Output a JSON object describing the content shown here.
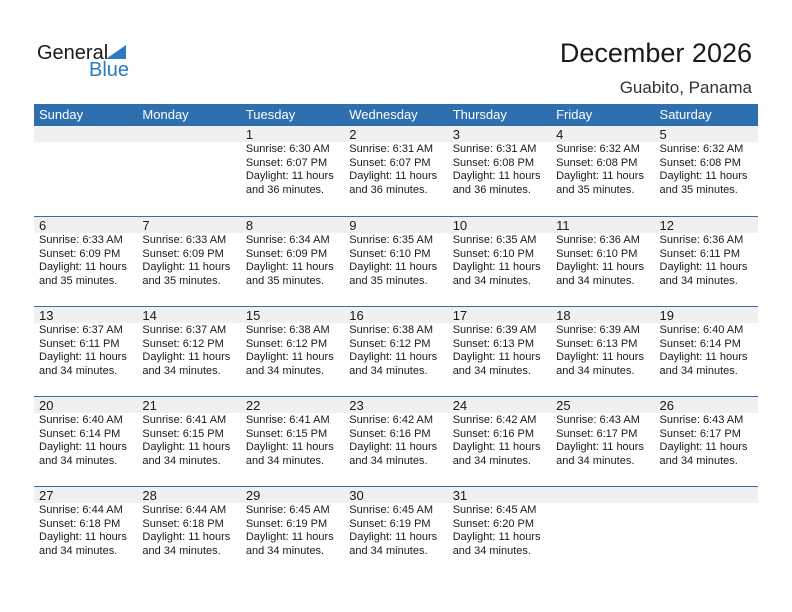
{
  "logo": {
    "general": "General",
    "blue": "Blue"
  },
  "title": "December 2026",
  "location": "Guabito, Panama",
  "colors": {
    "header": "#2e6fb0",
    "band": "#f0f0f0",
    "logo_blue": "#2a7bbf"
  },
  "weekdays": [
    "Sunday",
    "Monday",
    "Tuesday",
    "Wednesday",
    "Thursday",
    "Friday",
    "Saturday"
  ],
  "weeks": [
    [
      null,
      null,
      {
        "day": "1",
        "sunrise": "Sunrise: 6:30 AM",
        "sunset": "Sunset: 6:07 PM",
        "daylight1": "Daylight: 11 hours",
        "daylight2": "and 36 minutes."
      },
      {
        "day": "2",
        "sunrise": "Sunrise: 6:31 AM",
        "sunset": "Sunset: 6:07 PM",
        "daylight1": "Daylight: 11 hours",
        "daylight2": "and 36 minutes."
      },
      {
        "day": "3",
        "sunrise": "Sunrise: 6:31 AM",
        "sunset": "Sunset: 6:08 PM",
        "daylight1": "Daylight: 11 hours",
        "daylight2": "and 36 minutes."
      },
      {
        "day": "4",
        "sunrise": "Sunrise: 6:32 AM",
        "sunset": "Sunset: 6:08 PM",
        "daylight1": "Daylight: 11 hours",
        "daylight2": "and 35 minutes."
      },
      {
        "day": "5",
        "sunrise": "Sunrise: 6:32 AM",
        "sunset": "Sunset: 6:08 PM",
        "daylight1": "Daylight: 11 hours",
        "daylight2": "and 35 minutes."
      }
    ],
    [
      {
        "day": "6",
        "sunrise": "Sunrise: 6:33 AM",
        "sunset": "Sunset: 6:09 PM",
        "daylight1": "Daylight: 11 hours",
        "daylight2": "and 35 minutes."
      },
      {
        "day": "7",
        "sunrise": "Sunrise: 6:33 AM",
        "sunset": "Sunset: 6:09 PM",
        "daylight1": "Daylight: 11 hours",
        "daylight2": "and 35 minutes."
      },
      {
        "day": "8",
        "sunrise": "Sunrise: 6:34 AM",
        "sunset": "Sunset: 6:09 PM",
        "daylight1": "Daylight: 11 hours",
        "daylight2": "and 35 minutes."
      },
      {
        "day": "9",
        "sunrise": "Sunrise: 6:35 AM",
        "sunset": "Sunset: 6:10 PM",
        "daylight1": "Daylight: 11 hours",
        "daylight2": "and 35 minutes."
      },
      {
        "day": "10",
        "sunrise": "Sunrise: 6:35 AM",
        "sunset": "Sunset: 6:10 PM",
        "daylight1": "Daylight: 11 hours",
        "daylight2": "and 34 minutes."
      },
      {
        "day": "11",
        "sunrise": "Sunrise: 6:36 AM",
        "sunset": "Sunset: 6:10 PM",
        "daylight1": "Daylight: 11 hours",
        "daylight2": "and 34 minutes."
      },
      {
        "day": "12",
        "sunrise": "Sunrise: 6:36 AM",
        "sunset": "Sunset: 6:11 PM",
        "daylight1": "Daylight: 11 hours",
        "daylight2": "and 34 minutes."
      }
    ],
    [
      {
        "day": "13",
        "sunrise": "Sunrise: 6:37 AM",
        "sunset": "Sunset: 6:11 PM",
        "daylight1": "Daylight: 11 hours",
        "daylight2": "and 34 minutes."
      },
      {
        "day": "14",
        "sunrise": "Sunrise: 6:37 AM",
        "sunset": "Sunset: 6:12 PM",
        "daylight1": "Daylight: 11 hours",
        "daylight2": "and 34 minutes."
      },
      {
        "day": "15",
        "sunrise": "Sunrise: 6:38 AM",
        "sunset": "Sunset: 6:12 PM",
        "daylight1": "Daylight: 11 hours",
        "daylight2": "and 34 minutes."
      },
      {
        "day": "16",
        "sunrise": "Sunrise: 6:38 AM",
        "sunset": "Sunset: 6:12 PM",
        "daylight1": "Daylight: 11 hours",
        "daylight2": "and 34 minutes."
      },
      {
        "day": "17",
        "sunrise": "Sunrise: 6:39 AM",
        "sunset": "Sunset: 6:13 PM",
        "daylight1": "Daylight: 11 hours",
        "daylight2": "and 34 minutes."
      },
      {
        "day": "18",
        "sunrise": "Sunrise: 6:39 AM",
        "sunset": "Sunset: 6:13 PM",
        "daylight1": "Daylight: 11 hours",
        "daylight2": "and 34 minutes."
      },
      {
        "day": "19",
        "sunrise": "Sunrise: 6:40 AM",
        "sunset": "Sunset: 6:14 PM",
        "daylight1": "Daylight: 11 hours",
        "daylight2": "and 34 minutes."
      }
    ],
    [
      {
        "day": "20",
        "sunrise": "Sunrise: 6:40 AM",
        "sunset": "Sunset: 6:14 PM",
        "daylight1": "Daylight: 11 hours",
        "daylight2": "and 34 minutes."
      },
      {
        "day": "21",
        "sunrise": "Sunrise: 6:41 AM",
        "sunset": "Sunset: 6:15 PM",
        "daylight1": "Daylight: 11 hours",
        "daylight2": "and 34 minutes."
      },
      {
        "day": "22",
        "sunrise": "Sunrise: 6:41 AM",
        "sunset": "Sunset: 6:15 PM",
        "daylight1": "Daylight: 11 hours",
        "daylight2": "and 34 minutes."
      },
      {
        "day": "23",
        "sunrise": "Sunrise: 6:42 AM",
        "sunset": "Sunset: 6:16 PM",
        "daylight1": "Daylight: 11 hours",
        "daylight2": "and 34 minutes."
      },
      {
        "day": "24",
        "sunrise": "Sunrise: 6:42 AM",
        "sunset": "Sunset: 6:16 PM",
        "daylight1": "Daylight: 11 hours",
        "daylight2": "and 34 minutes."
      },
      {
        "day": "25",
        "sunrise": "Sunrise: 6:43 AM",
        "sunset": "Sunset: 6:17 PM",
        "daylight1": "Daylight: 11 hours",
        "daylight2": "and 34 minutes."
      },
      {
        "day": "26",
        "sunrise": "Sunrise: 6:43 AM",
        "sunset": "Sunset: 6:17 PM",
        "daylight1": "Daylight: 11 hours",
        "daylight2": "and 34 minutes."
      }
    ],
    [
      {
        "day": "27",
        "sunrise": "Sunrise: 6:44 AM",
        "sunset": "Sunset: 6:18 PM",
        "daylight1": "Daylight: 11 hours",
        "daylight2": "and 34 minutes."
      },
      {
        "day": "28",
        "sunrise": "Sunrise: 6:44 AM",
        "sunset": "Sunset: 6:18 PM",
        "daylight1": "Daylight: 11 hours",
        "daylight2": "and 34 minutes."
      },
      {
        "day": "29",
        "sunrise": "Sunrise: 6:45 AM",
        "sunset": "Sunset: 6:19 PM",
        "daylight1": "Daylight: 11 hours",
        "daylight2": "and 34 minutes."
      },
      {
        "day": "30",
        "sunrise": "Sunrise: 6:45 AM",
        "sunset": "Sunset: 6:19 PM",
        "daylight1": "Daylight: 11 hours",
        "daylight2": "and 34 minutes."
      },
      {
        "day": "31",
        "sunrise": "Sunrise: 6:45 AM",
        "sunset": "Sunset: 6:20 PM",
        "daylight1": "Daylight: 11 hours",
        "daylight2": "and 34 minutes."
      },
      null,
      null
    ]
  ]
}
